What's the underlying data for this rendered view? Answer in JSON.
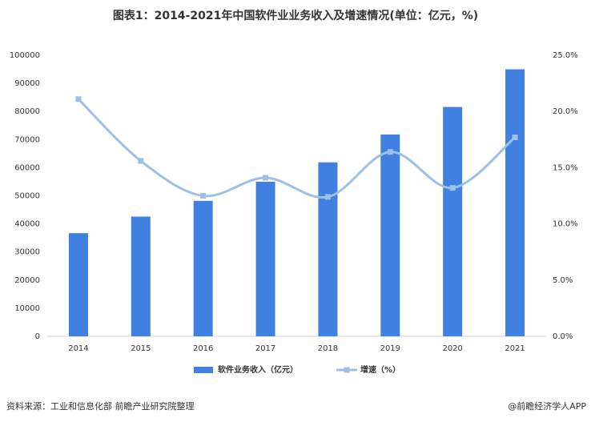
{
  "chart_data": {
    "type": "bar-line",
    "title": "图表1：2014-2021年中国软件业业务收入及增速情况(单位：亿元，%)",
    "categories": [
      "2014",
      "2015",
      "2016",
      "2017",
      "2018",
      "2019",
      "2020",
      "2021"
    ],
    "series": [
      {
        "name": "软件业务收入（亿元）",
        "type": "bar",
        "color": "#3f80e0",
        "values": [
          36700,
          42600,
          48200,
          55000,
          61900,
          71800,
          81600,
          95000
        ]
      },
      {
        "name": "增速（%）",
        "type": "line",
        "axis": "y2",
        "color": "#9dbfe8",
        "values": [
          21.1,
          15.6,
          12.5,
          14.1,
          12.4,
          16.4,
          13.2,
          17.7
        ]
      }
    ],
    "ylim": [
      0,
      100000
    ],
    "yticks": [
      0,
      10000,
      20000,
      30000,
      40000,
      50000,
      60000,
      70000,
      80000,
      90000,
      100000
    ],
    "y2lim": [
      0,
      25
    ],
    "y2ticks": [
      {
        "value": 0,
        "label": "0.0%"
      },
      {
        "value": 5,
        "label": "5.0%"
      },
      {
        "value": 10,
        "label": "10.0%"
      },
      {
        "value": 15,
        "label": "15.0%"
      },
      {
        "value": 20,
        "label": "20.0%"
      },
      {
        "value": 25,
        "label": "25.0%"
      }
    ],
    "grid": false,
    "legend": "bottom",
    "source": "资料来源：工业和信息化部 前瞻产业研究院整理",
    "attribution": "@前瞻经济学人APP"
  }
}
